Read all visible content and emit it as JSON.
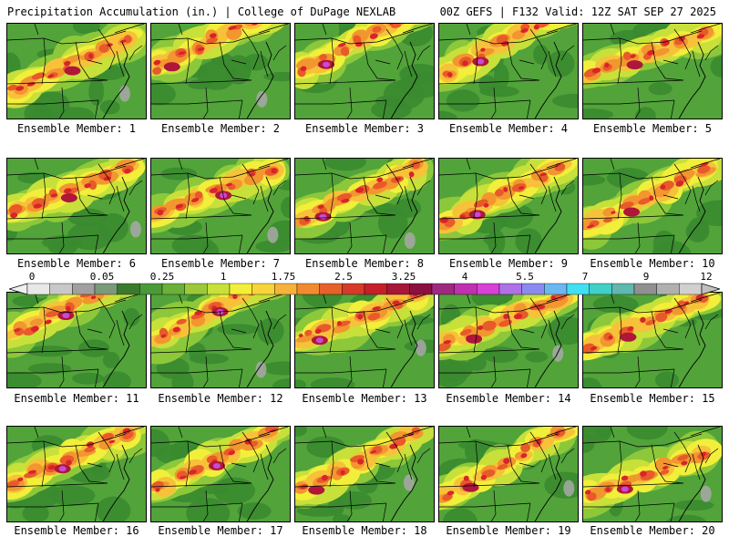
{
  "header": {
    "title_left": "Precipitation Accumulation (in.) | College of DuPage NEXLAB",
    "title_right": "00Z GEFS | F132 Valid: 12Z SAT SEP 27 2025"
  },
  "colors": {
    "green_dark": "#3a8a30",
    "green": "#52a33a",
    "green_light": "#8cc83a",
    "yellow_green": "#c8e03a",
    "yellow": "#f2ef3a",
    "orange_light": "#f7c23a",
    "orange": "#f2962f",
    "red_orange": "#e85a2a",
    "red": "#d8242a",
    "dark_red": "#b0163a",
    "magenta": "#a8309e",
    "purple": "#c84ad6",
    "gray": "#a8a8a8"
  },
  "members": [
    {
      "label": "Ensemble Member: 1"
    },
    {
      "label": "Ensemble Member: 2"
    },
    {
      "label": "Ensemble Member: 3"
    },
    {
      "label": "Ensemble Member: 4"
    },
    {
      "label": "Ensemble Member: 5"
    },
    {
      "label": "Ensemble Member: 6"
    },
    {
      "label": "Ensemble Member: 7"
    },
    {
      "label": "Ensemble Member: 8"
    },
    {
      "label": "Ensemble Member: 9"
    },
    {
      "label": "Ensemble Member: 10"
    },
    {
      "label": "Ensemble Member: 11"
    },
    {
      "label": "Ensemble Member: 12"
    },
    {
      "label": "Ensemble Member: 13"
    },
    {
      "label": "Ensemble Member: 14"
    },
    {
      "label": "Ensemble Member: 15"
    },
    {
      "label": "Ensemble Member: 16"
    },
    {
      "label": "Ensemble Member: 17"
    },
    {
      "label": "Ensemble Member: 18"
    },
    {
      "label": "Ensemble Member: 19"
    },
    {
      "label": "Ensemble Member: 20"
    }
  ],
  "colorbar": {
    "tick_labels": [
      "0",
      "0.05",
      "0.25",
      "1",
      "1.75",
      "2.5",
      "3.25",
      "4",
      "5.5",
      "7",
      "9",
      "12"
    ],
    "swatches": [
      "#e8e8e8",
      "#c8c8c8",
      "#a0a0a0",
      "#7a9a7a",
      "#3a7a30",
      "#4a9a3a",
      "#6ab03a",
      "#9cc83a",
      "#c8e03a",
      "#f2ef3a",
      "#f7d43a",
      "#f7b23a",
      "#f28a2f",
      "#e8602a",
      "#d83a2a",
      "#c81e2a",
      "#a8163a",
      "#8a1040",
      "#a02880",
      "#c030b0",
      "#d840d8",
      "#b070e8",
      "#8a8af2",
      "#6ab8f2",
      "#40e0f2",
      "#40d0c8",
      "#60b8b0",
      "#909090",
      "#b0b0b0",
      "#d0d0d0"
    ]
  }
}
